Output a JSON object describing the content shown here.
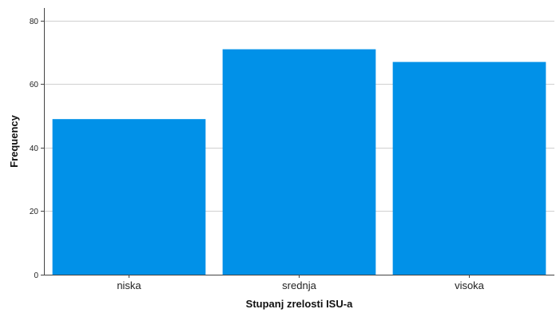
{
  "chart_data": {
    "type": "bar",
    "title": "",
    "xlabel": "Stupanj zrelosti ISU-a",
    "ylabel": "Frequency",
    "categories": [
      "niska",
      "srednja",
      "visoka"
    ],
    "values": [
      49,
      71,
      67
    ],
    "ylim": [
      0,
      84
    ],
    "yticks": [
      0,
      20,
      40,
      60,
      80
    ],
    "grid": true,
    "legend": "none",
    "bar_color": "#0191e8"
  }
}
